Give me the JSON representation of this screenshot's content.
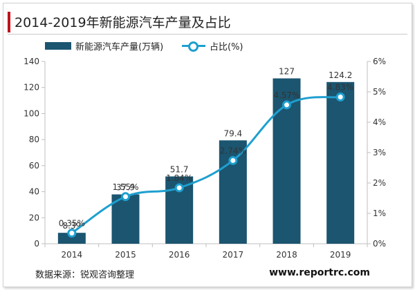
{
  "title": "2014-2019年新能源汽车产量及占比",
  "colors": {
    "accent": "#c0131b",
    "bar": "#1b5570",
    "line": "#1e9fcf",
    "axis": "#bfbfbf",
    "text": "#333333"
  },
  "legend": {
    "bar_label": "新能源汽车产量(万辆)",
    "line_label": "占比(%)"
  },
  "footer": {
    "source": "数据来源：锐观咨询整理",
    "website": "www.reportrc.com"
  },
  "chart_data": {
    "type": "bar",
    "categories": [
      "2014",
      "2015",
      "2016",
      "2017",
      "2018",
      "2019"
    ],
    "series": [
      {
        "name": "新能源汽车产量(万辆)",
        "type": "bar",
        "axis": "left",
        "values": [
          8.39,
          37.9,
          51.7,
          79.4,
          127,
          124.2
        ],
        "labels": [
          "8.39",
          "37.9",
          "51.7",
          "79.4",
          "127",
          "124.2"
        ]
      },
      {
        "name": "占比(%)",
        "type": "line",
        "axis": "right",
        "values": [
          0.35,
          1.55,
          1.84,
          2.74,
          4.57,
          4.83
        ],
        "labels": [
          "0.35%",
          "1.55%",
          "1.84%",
          "2.74%",
          "4.57%",
          "4.83%"
        ]
      }
    ],
    "y_left": {
      "ylim": [
        0,
        140
      ],
      "ticks": [
        "0",
        "20",
        "40",
        "60",
        "80",
        "100",
        "120",
        "140"
      ]
    },
    "y_right": {
      "ylim": [
        0,
        6
      ],
      "ticks": [
        "0%",
        "1%",
        "2%",
        "3%",
        "4%",
        "5%",
        "6%"
      ]
    },
    "grid": false,
    "legend_position": "top-left"
  }
}
